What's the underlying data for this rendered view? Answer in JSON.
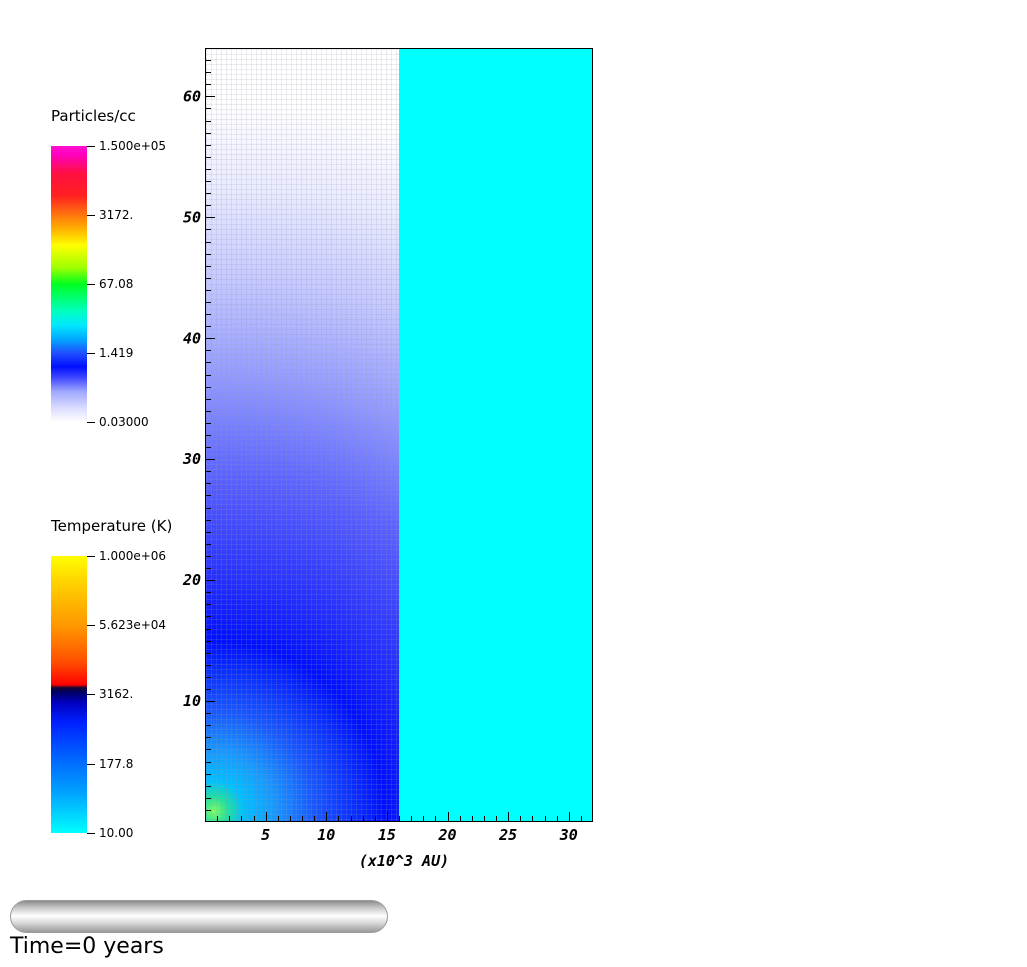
{
  "legends": {
    "density": {
      "title": "Particles/cc",
      "ticks": [
        "1.500e+05",
        "3172.",
        "67.08",
        "1.419",
        "0.03000"
      ]
    },
    "temperature": {
      "title": "Temperature (K)",
      "ticks": [
        "1.000e+06",
        "5.623e+04",
        "3162.",
        "177.8",
        "10.00"
      ]
    }
  },
  "time_label": "Time=0 years",
  "chart_data": {
    "type": "heatmap",
    "title": "",
    "xlabel": "(x10^3 AU)",
    "ylabel": "",
    "xlim": [
      0,
      32
    ],
    "ylim": [
      0,
      64
    ],
    "x_ticks": [
      5,
      10,
      15,
      20,
      25,
      30
    ],
    "y_ticks": [
      10,
      20,
      30,
      40,
      50,
      60
    ],
    "x_tick_labels": [
      "5",
      "10",
      "15",
      "20",
      "25",
      "30"
    ],
    "y_tick_labels": [
      "10",
      "20",
      "30",
      "40",
      "50",
      "60"
    ],
    "x_minor_step": 1,
    "y_minor_step": 1,
    "split_x": 16,
    "fields": [
      {
        "name": "Particles/cc",
        "x_range": [
          0,
          16
        ],
        "color_scale": "log",
        "range": [
          0.03,
          150000
        ]
      },
      {
        "name": "Temperature (K)",
        "x_range": [
          16,
          32
        ],
        "color_scale": "log",
        "range": [
          10,
          1000000
        ]
      }
    ],
    "colors": {
      "temperature_uniform": "#00ffff",
      "axes": "#000000"
    }
  }
}
